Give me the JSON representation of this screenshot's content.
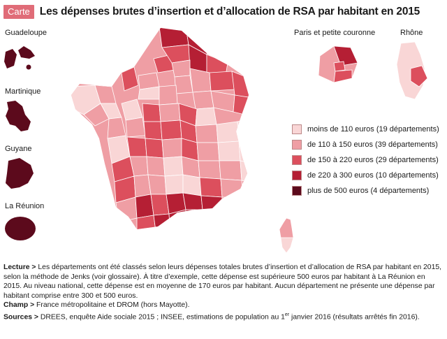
{
  "header": {
    "badge": "Carte",
    "title": "Les dépenses brutes d’insertion et d’allocation de RSA par habitant en 2015"
  },
  "insets": {
    "guadeloupe": "Guadeloupe",
    "martinique": "Martinique",
    "guyane": "Guyane",
    "reunion": "La Réunion",
    "paris": "Paris et petite couronne",
    "rhone": "Rhône"
  },
  "legend": [
    {
      "label": "moins de 110 euros (19 départements)",
      "color": "#f9d6d6"
    },
    {
      "label": "de 110 à 150 euros (39 départements)",
      "color": "#ef9ea4"
    },
    {
      "label": "de 150 à 220 euros (29 départements)",
      "color": "#dc4f5d"
    },
    {
      "label": "de 220 à 300 euros (10 départements)",
      "color": "#b51f34"
    },
    {
      "label": "plus de 500 euros (4 départements)",
      "color": "#5c0a1c"
    }
  ],
  "notes": {
    "lecture_label": "Lecture >",
    "lecture_text": " Les départements ont été classés selon leurs dépenses totales brutes d’insertion et d’allocation de RSA par habitant en 2015, selon la méthode de Jenks (voir glossaire). À titre d’exemple, cette dépense est supérieure 500 euros par habitant à La Réunion en 2015. Au niveau national, cette dépense est en moyenne de 170 euros par habitant. Aucun département ne présente une dépense par habitant comprise entre 300 et 500 euros.",
    "champ_label": "Champ >",
    "champ_text": " France métropolitaine et DROM (hors Mayotte).",
    "sources_label": "Sources >",
    "sources_text_a": " DREES, enquête Aide sociale 2015 ; INSEE, estimations de population au 1",
    "sources_sup": "er",
    "sources_text_b": " janvier 2016 (résultats arrêtés fin 2016)."
  }
}
